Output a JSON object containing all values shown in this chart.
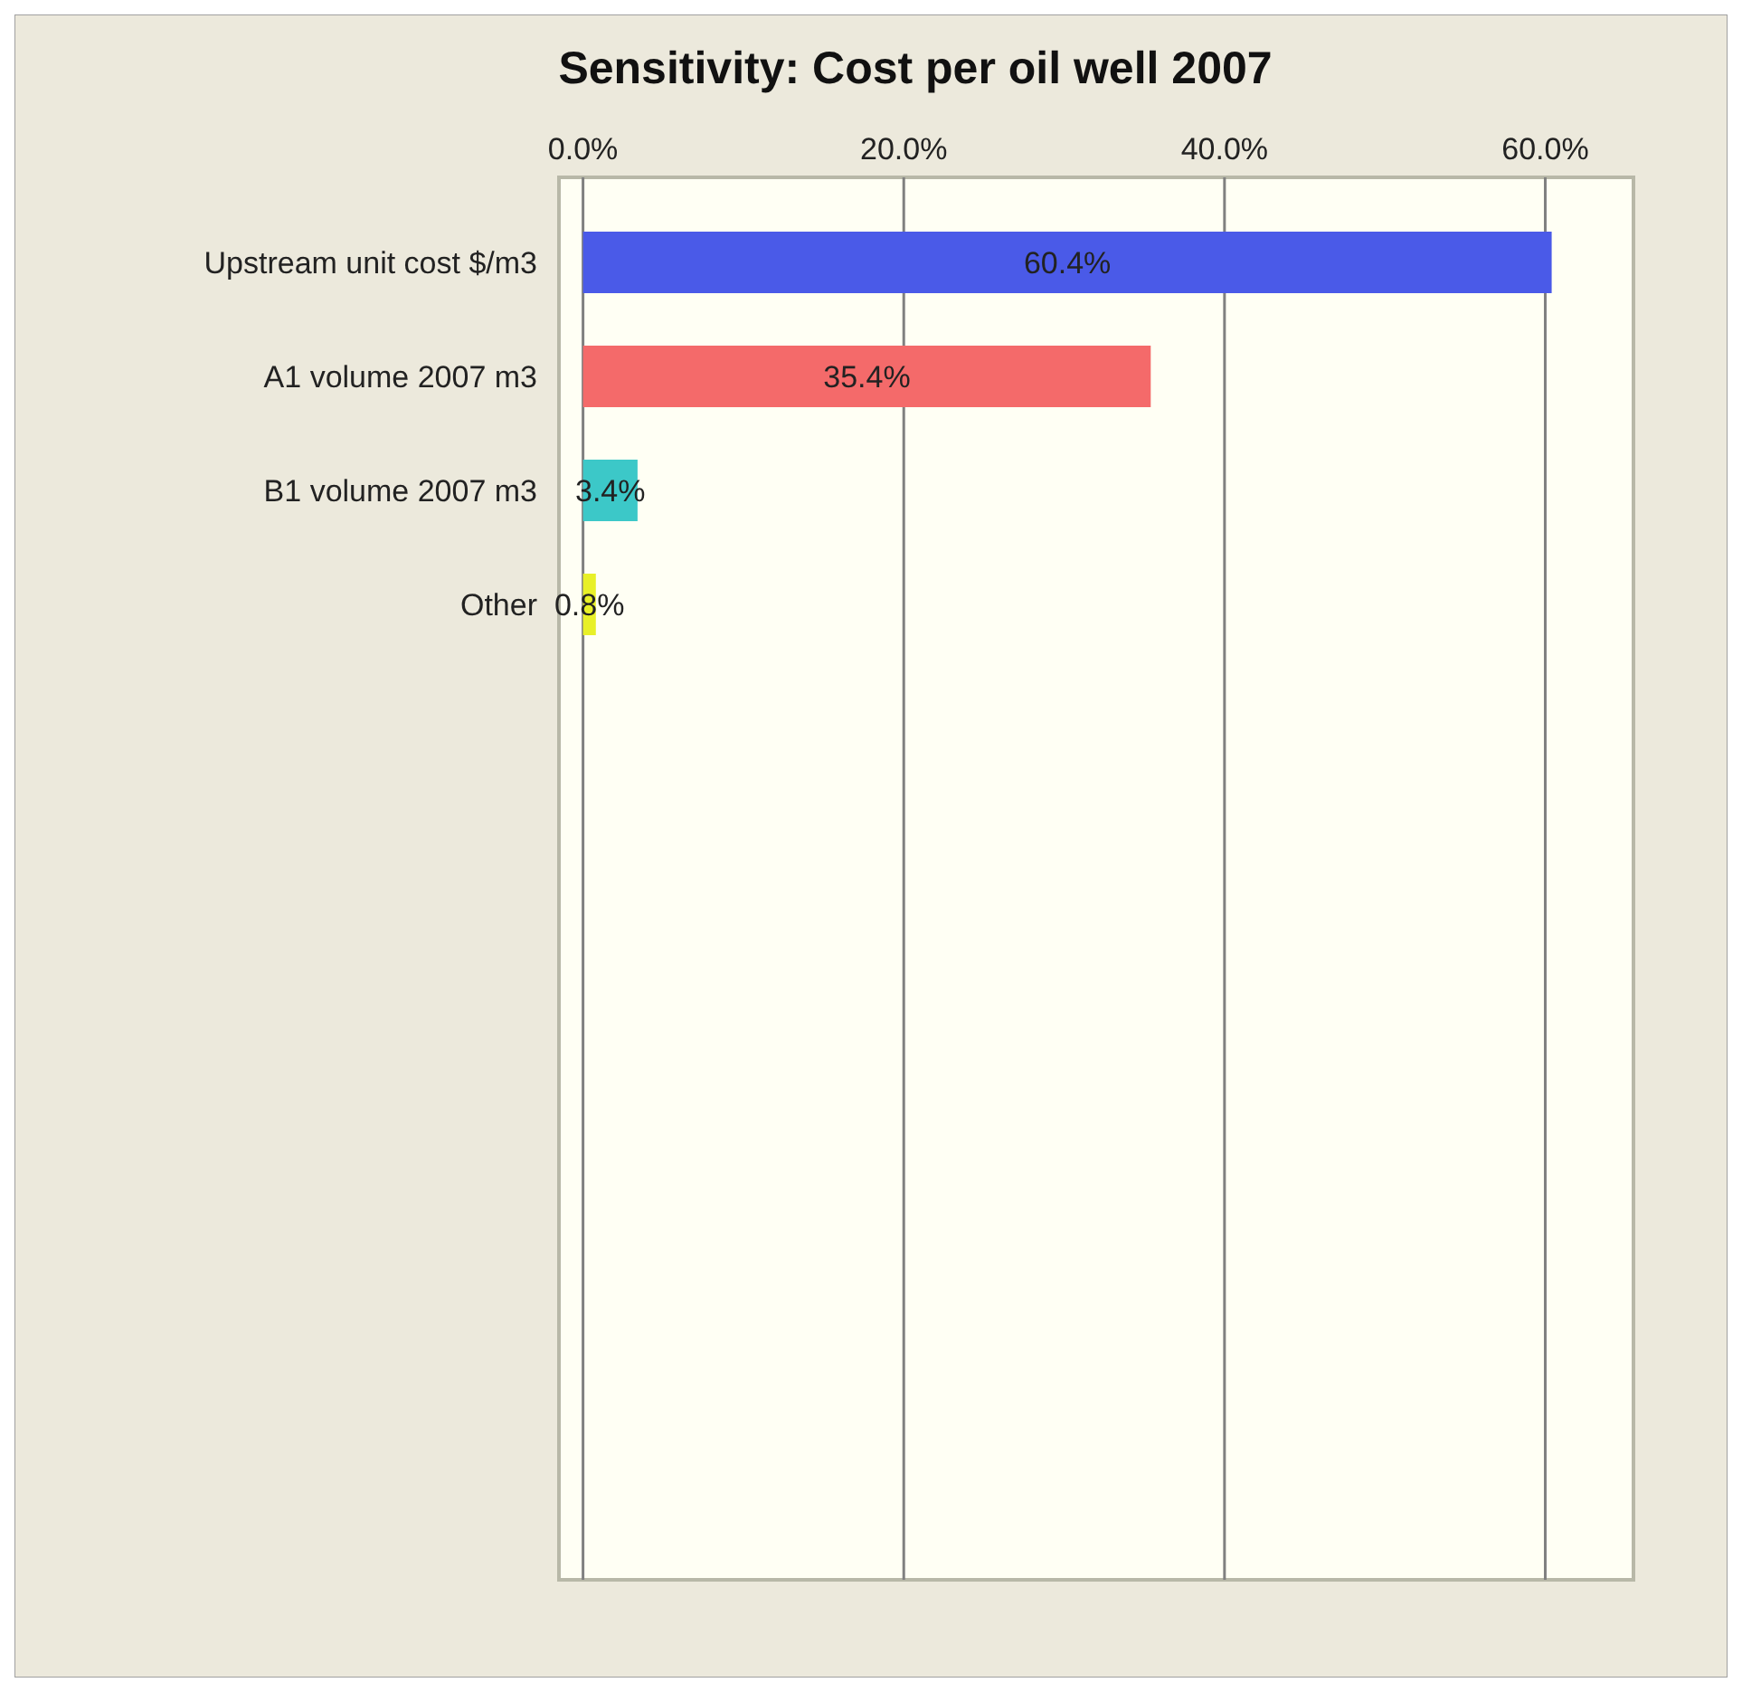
{
  "chart_data": {
    "type": "bar",
    "orientation": "horizontal",
    "title": "Sensitivity: Cost per oil well 2007",
    "categories": [
      "Upstream unit cost $/m3",
      "A1 volume 2007 m3",
      "B1 volume 2007 m3",
      "Other"
    ],
    "values": [
      60.4,
      35.4,
      3.4,
      0.8
    ],
    "colors": [
      "#4a5ae8",
      "#f46a6a",
      "#3cc8c8",
      "#e8f028"
    ],
    "value_labels": [
      "60.4%",
      "35.4%",
      "3.4%",
      "0.8%"
    ],
    "xlim": [
      -1.5,
      65.5
    ],
    "xticks": [
      {
        "value": 0,
        "label": "0.0%"
      },
      {
        "value": 20,
        "label": "20.0%"
      },
      {
        "value": 40,
        "label": "40.0%"
      },
      {
        "value": 60,
        "label": "60.0%"
      }
    ],
    "grid": "x"
  }
}
